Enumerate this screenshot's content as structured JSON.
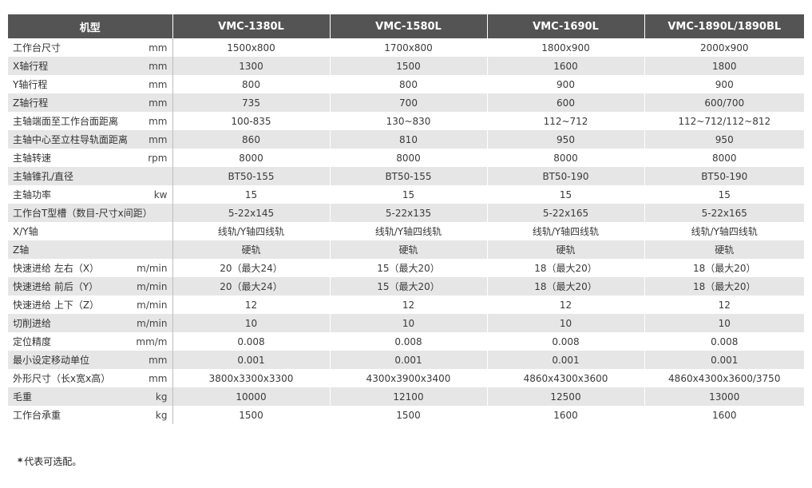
{
  "table": {
    "header": {
      "label": "机型",
      "models": [
        "VMC-1380L",
        "VMC-1580L",
        "VMC-1690L",
        "VMC-1890L/1890BL"
      ]
    },
    "rows": [
      {
        "name": "工作台尺寸",
        "unit": "mm",
        "values": [
          "1500x800",
          "1700x800",
          "1800x900",
          "2000x900"
        ]
      },
      {
        "name": "X轴行程",
        "unit": "mm",
        "values": [
          "1300",
          "1500",
          "1600",
          "1800"
        ]
      },
      {
        "name": "Y轴行程",
        "unit": "mm",
        "values": [
          "800",
          "800",
          "900",
          "900"
        ]
      },
      {
        "name": "Z轴行程",
        "unit": "mm",
        "values": [
          "735",
          "700",
          "600",
          "600/700"
        ]
      },
      {
        "name": "主轴端面至工作台面距离",
        "unit": "mm",
        "values": [
          "100-835",
          "130~830",
          "112~712",
          "112~712/112~812"
        ]
      },
      {
        "name": "主轴中心至立柱导轨面距离",
        "unit": "mm",
        "values": [
          "860",
          "810",
          "950",
          "950"
        ]
      },
      {
        "name": "主轴转速",
        "unit": "rpm",
        "values": [
          "8000",
          "8000",
          "8000",
          "8000"
        ]
      },
      {
        "name": "主轴锥孔/直径",
        "unit": "",
        "values": [
          "BT50-155",
          "BT50-155",
          "BT50-190",
          "BT50-190"
        ]
      },
      {
        "name": "主轴功率",
        "unit": "kw",
        "values": [
          "15",
          "15",
          "15",
          "15"
        ]
      },
      {
        "name": "工作台T型槽（数目-尺寸x间距）",
        "unit": "",
        "values": [
          "5-22x145",
          "5-22x135",
          "5-22x165",
          "5-22x165"
        ]
      },
      {
        "name": "X/Y轴",
        "unit": "",
        "values": [
          "线轨/Y轴四线轨",
          "线轨/Y轴四线轨",
          "线轨/Y轴四线轨",
          "线轨/Y轴四线轨"
        ]
      },
      {
        "name": "Z轴",
        "unit": "",
        "values": [
          "硬轨",
          "硬轨",
          "硬轨",
          "硬轨"
        ]
      },
      {
        "name": "快速进给 左右（X）",
        "unit": "m/min",
        "values": [
          "20（最大24）",
          "15（最大20）",
          "18（最大20）",
          "18（最大20）"
        ]
      },
      {
        "name": "快速进给 前后（Y）",
        "unit": "m/min",
        "values": [
          "20（最大24）",
          "15（最大20）",
          "18（最大20）",
          "18（最大20）"
        ]
      },
      {
        "name": "快速进给 上下（Z）",
        "unit": "m/min",
        "values": [
          "12",
          "12",
          "12",
          "12"
        ]
      },
      {
        "name": "切削进给",
        "unit": "m/min",
        "values": [
          "10",
          "10",
          "10",
          "10"
        ]
      },
      {
        "name": "定位精度",
        "unit": "mm/m",
        "values": [
          "0.008",
          "0.008",
          "0.008",
          "0.008"
        ]
      },
      {
        "name": "最小设定移动单位",
        "unit": "mm",
        "values": [
          "0.001",
          "0.001",
          "0.001",
          "0.001"
        ]
      },
      {
        "name": "外形尺寸（长x宽x高）",
        "unit": "mm",
        "values": [
          "3800x3300x3300",
          "4300x3900x3400",
          "4860x4300x3600",
          "4860x4300x3600/3750"
        ]
      },
      {
        "name": "毛重",
        "unit": "kg",
        "values": [
          "10000",
          "12100",
          "12500",
          "13000"
        ]
      },
      {
        "name": "工作台承重",
        "unit": "kg",
        "values": [
          "1500",
          "1500",
          "1600",
          "1600"
        ]
      }
    ]
  },
  "footnote": {
    "star": "*",
    "text": "代表可选配。"
  },
  "colors": {
    "header_bg": "#545454",
    "header_text": "#ffffff",
    "row_alt_bg": "#e6e6e6",
    "row_bg": "#ffffff"
  }
}
